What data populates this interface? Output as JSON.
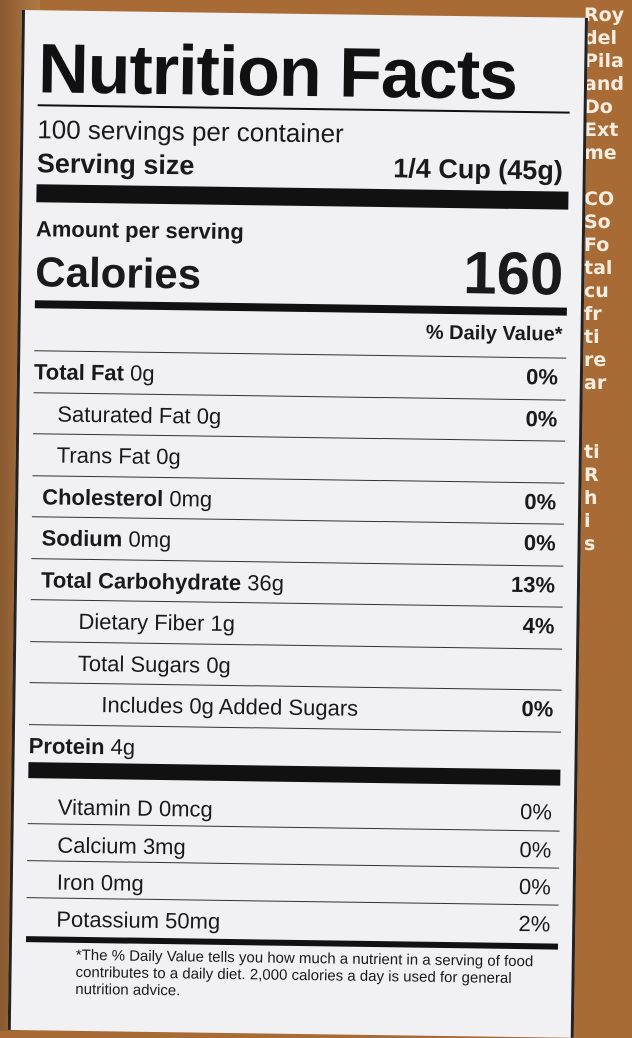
{
  "label": {
    "title": "Nutrition Facts",
    "servings": "100 servings per container",
    "serving_size_label": "Serving size",
    "serving_size_value": "1/4 Cup (45g)",
    "amount_per_serving": "Amount per serving",
    "calories_label": "Calories",
    "calories_value": "160",
    "dv_header": "% Daily Value*",
    "nutrients": [
      {
        "name": "Total Fat",
        "amount": "0g",
        "dv": "0%"
      },
      {
        "name": "Saturated Fat",
        "amount": "0g",
        "dv": "0%"
      },
      {
        "name": "Trans Fat",
        "amount": "0g",
        "dv": ""
      },
      {
        "name": "Cholesterol",
        "amount": "0mg",
        "dv": "0%"
      },
      {
        "name": "Sodium",
        "amount": "0mg",
        "dv": "0%"
      },
      {
        "name": "Total Carbohydrate",
        "amount": "36g",
        "dv": "13%"
      },
      {
        "name": "Dietary Fiber",
        "amount": "1g",
        "dv": "4%"
      },
      {
        "name": "Total Sugars",
        "amount": "0g",
        "dv": ""
      },
      {
        "name": "Includes 0g Added Sugars",
        "amount": "",
        "dv": "0%"
      },
      {
        "name": "Protein",
        "amount": "4g",
        "dv": ""
      }
    ],
    "vitamins": [
      {
        "name": "Vitamin D",
        "amount": "0mcg",
        "dv": "0%"
      },
      {
        "name": "Calcium",
        "amount": "3mg",
        "dv": "0%"
      },
      {
        "name": "Iron",
        "amount": "0mg",
        "dv": "0%"
      },
      {
        "name": "Potassium",
        "amount": "50mg",
        "dv": "2%"
      }
    ],
    "footnote": "*The % Daily Value tells you how much a nutrient in a serving of food contributes to a daily diet. 2,000 calories a day is used for general nutrition advice."
  },
  "side_text": "Roy\ndel\nPila\nand\nDo\nExt\nme\n\nCO\nSo\nFo\ntal\ncu\nfr\nti\nre\nar\n\n\nti\nR\nh\ni\ns"
}
